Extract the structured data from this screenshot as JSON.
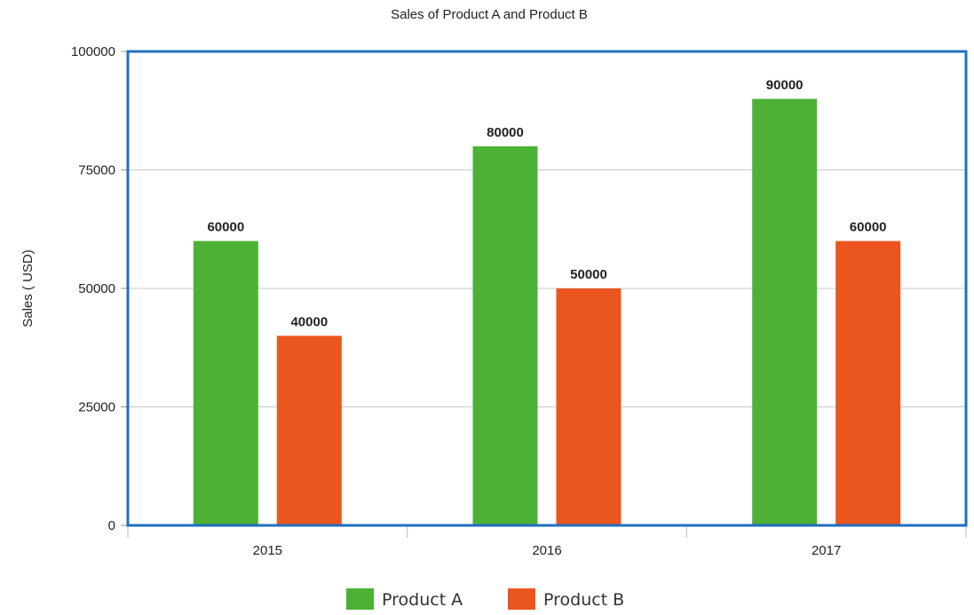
{
  "chart_data": {
    "type": "bar",
    "title": "Sales of Product A and Product B",
    "xlabel": "",
    "ylabel": "Sales ( USD)",
    "categories": [
      "2015",
      "2016",
      "2017"
    ],
    "series": [
      {
        "name": "Product A",
        "values": [
          60000,
          80000,
          90000
        ],
        "color": "#4db135"
      },
      {
        "name": "Product B",
        "values": [
          40000,
          50000,
          60000
        ],
        "color": "#eb561f"
      }
    ],
    "ylim": [
      0,
      100000
    ],
    "yticks": [
      "0",
      "25000",
      "50000",
      "75000",
      "100000"
    ],
    "data_labels": true,
    "grid": true,
    "legend_position": "bottom-center",
    "colors": {
      "plot_border": "#1f6fbf",
      "grid": "#c8c8c8"
    }
  }
}
